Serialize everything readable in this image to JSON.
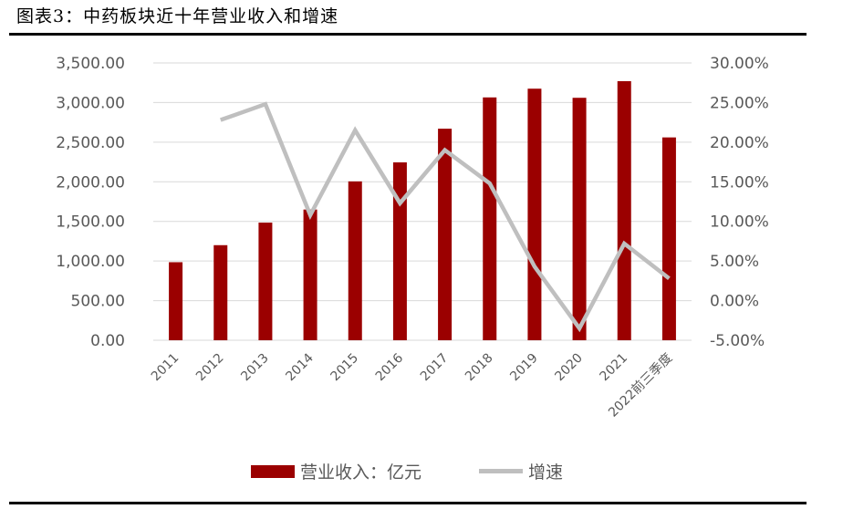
{
  "figure_title": "图表3：中药板块近十年营业收入和增速",
  "colors": {
    "bar": "#9B0000",
    "line": "#BFBFBF",
    "grid": "#D9D9D9",
    "tick_text": "#595959"
  },
  "chart_data": {
    "type": "bar",
    "title": "",
    "categories": [
      "2011",
      "2012",
      "2013",
      "2014",
      "2015",
      "2016",
      "2017",
      "2018",
      "2019",
      "2020",
      "2021",
      "2022前三季度"
    ],
    "series": [
      {
        "name": "营业收入：亿元",
        "type": "bar",
        "axis": "left",
        "values": [
          985,
          1200,
          1485,
          1650,
          2005,
          2245,
          2670,
          3065,
          3175,
          3060,
          3270,
          2560
        ]
      },
      {
        "name": "增速",
        "type": "line",
        "axis": "right",
        "values": [
          null,
          22.8,
          24.8,
          10.8,
          21.5,
          12.3,
          19.0,
          14.8,
          4.3,
          -3.5,
          7.2,
          2.8
        ]
      }
    ],
    "y_left": {
      "min": 0,
      "max": 3500,
      "step": 500,
      "tick_labels": [
        "0.00",
        "500.00",
        "1,000.00",
        "1,500.00",
        "2,000.00",
        "2,500.00",
        "3,000.00",
        "3,500.00"
      ]
    },
    "y_right": {
      "min": -5,
      "max": 30,
      "step": 5,
      "tick_labels": [
        "-5.00%",
        "0.00%",
        "5.00%",
        "10.00%",
        "15.00%",
        "20.00%",
        "25.00%",
        "30.00%"
      ]
    },
    "grid": true,
    "legend_position": "bottom"
  }
}
